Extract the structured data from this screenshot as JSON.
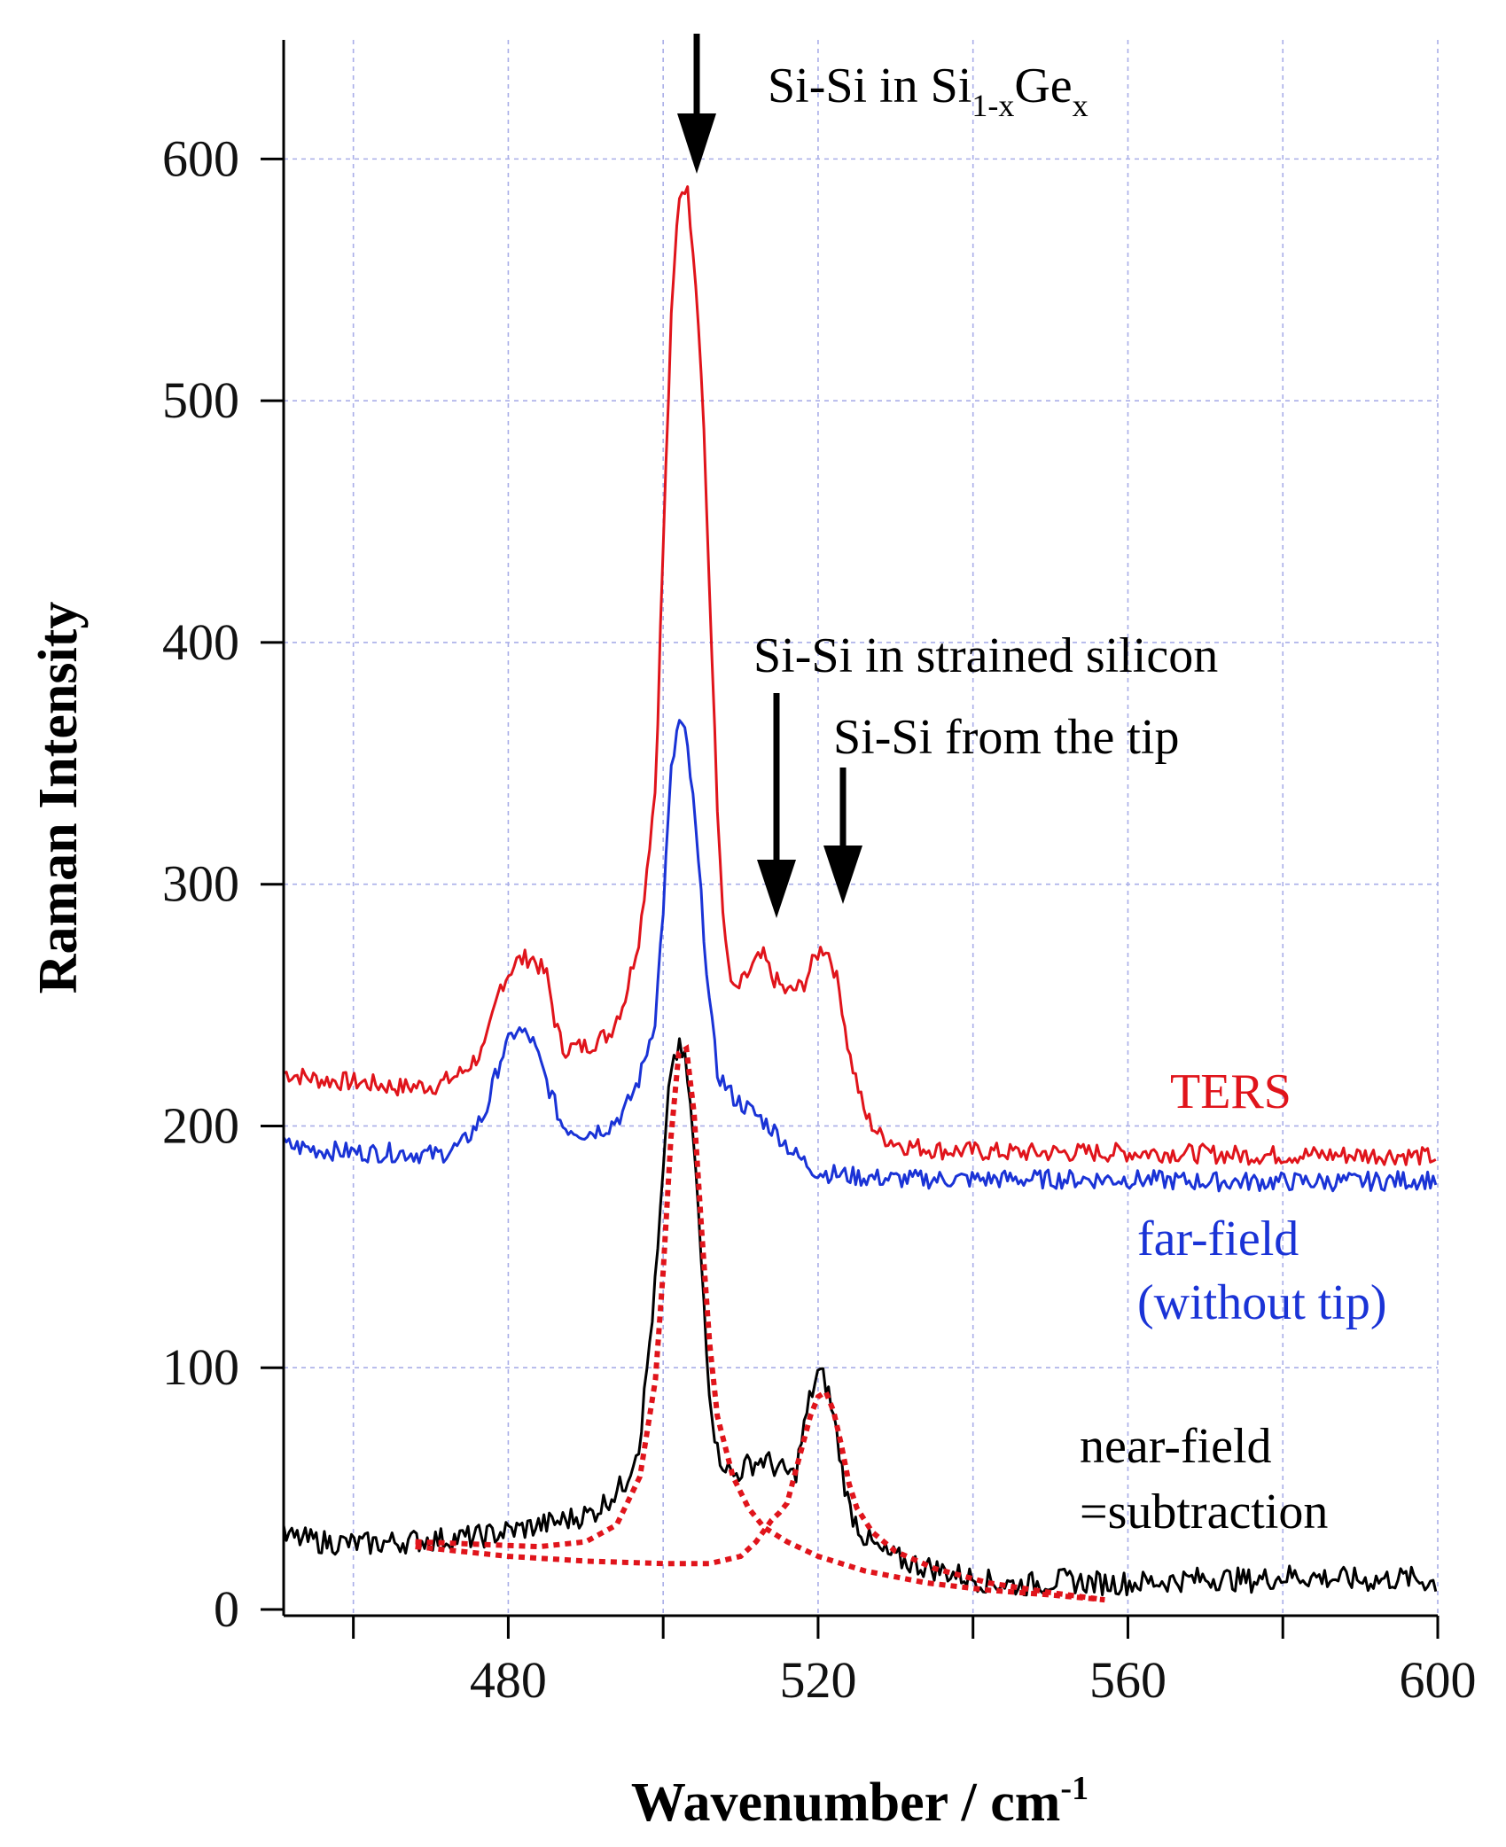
{
  "chart_data": {
    "type": "line",
    "title": "",
    "xlabel": "Wavenumber / cm",
    "xlabel_sup": "-1",
    "ylabel": "Raman Intensity",
    "xlim": [
      451,
      600
    ],
    "ylim": [
      0,
      650
    ],
    "x_ticks": [
      480,
      520,
      560,
      600
    ],
    "x_minor_ticks": [
      460,
      500,
      540,
      580
    ],
    "y_ticks": [
      0,
      100,
      200,
      300,
      400,
      500,
      600
    ],
    "grid": true,
    "colors": {
      "ters": "#e0141b",
      "farfield": "#1a33d6",
      "nearfield": "#000000",
      "fit": "#e0141b",
      "grid": "#a9aee8"
    },
    "series": [
      {
        "name": "TERS",
        "color": "#e0141b",
        "points": [
          [
            451,
            222
          ],
          [
            456,
            219
          ],
          [
            461,
            218
          ],
          [
            466,
            216
          ],
          [
            471,
            217
          ],
          [
            474,
            222
          ],
          [
            477,
            232
          ],
          [
            479,
            258
          ],
          [
            481,
            268
          ],
          [
            483,
            270
          ],
          [
            485,
            262
          ],
          [
            486,
            244
          ],
          [
            487,
            232
          ],
          [
            490,
            233
          ],
          [
            493,
            238
          ],
          [
            495,
            252
          ],
          [
            497,
            280
          ],
          [
            499,
            340
          ],
          [
            500,
            440
          ],
          [
            501,
            530
          ],
          [
            502,
            585
          ],
          [
            503,
            590
          ],
          [
            504,
            560
          ],
          [
            505,
            510
          ],
          [
            506,
            420
          ],
          [
            507,
            330
          ],
          [
            508,
            275
          ],
          [
            509,
            255
          ],
          [
            510,
            258
          ],
          [
            512,
            268
          ],
          [
            513,
            270
          ],
          [
            514,
            262
          ],
          [
            516,
            255
          ],
          [
            518,
            258
          ],
          [
            519,
            265
          ],
          [
            520,
            272
          ],
          [
            521,
            274
          ],
          [
            522,
            266
          ],
          [
            523,
            252
          ],
          [
            524,
            230
          ],
          [
            525,
            218
          ],
          [
            526,
            205
          ],
          [
            528,
            196
          ],
          [
            531,
            192
          ],
          [
            536,
            190
          ],
          [
            545,
            189
          ],
          [
            555,
            189
          ],
          [
            565,
            189
          ],
          [
            575,
            188
          ],
          [
            585,
            188
          ],
          [
            595,
            188
          ],
          [
            600,
            187
          ]
        ]
      },
      {
        "name": "far-field (without tip)",
        "color": "#1a33d6",
        "points": [
          [
            451,
            192
          ],
          [
            456,
            190
          ],
          [
            461,
            189
          ],
          [
            466,
            189
          ],
          [
            471,
            188
          ],
          [
            474,
            192
          ],
          [
            477,
            205
          ],
          [
            479,
            228
          ],
          [
            481,
            240
          ],
          [
            483,
            236
          ],
          [
            485,
            218
          ],
          [
            487,
            200
          ],
          [
            490,
            197
          ],
          [
            493,
            200
          ],
          [
            495,
            206
          ],
          [
            497,
            220
          ],
          [
            499,
            245
          ],
          [
            500,
            290
          ],
          [
            501,
            345
          ],
          [
            502,
            368
          ],
          [
            503,
            360
          ],
          [
            504,
            330
          ],
          [
            505,
            290
          ],
          [
            506,
            250
          ],
          [
            507,
            222
          ],
          [
            509,
            212
          ],
          [
            511,
            207
          ],
          [
            513,
            202
          ],
          [
            515,
            196
          ],
          [
            517,
            188
          ],
          [
            520,
            181
          ],
          [
            525,
            179
          ],
          [
            530,
            178
          ],
          [
            540,
            178
          ],
          [
            550,
            178
          ],
          [
            560,
            178
          ],
          [
            570,
            177
          ],
          [
            580,
            177
          ],
          [
            590,
            177
          ],
          [
            600,
            178
          ]
        ]
      },
      {
        "name": "near-field =subtraction",
        "color": "#000000",
        "points": [
          [
            451,
            30
          ],
          [
            456,
            28
          ],
          [
            461,
            27
          ],
          [
            466,
            28
          ],
          [
            471,
            29
          ],
          [
            476,
            30
          ],
          [
            481,
            33
          ],
          [
            486,
            36
          ],
          [
            491,
            40
          ],
          [
            495,
            52
          ],
          [
            497,
            70
          ],
          [
            499,
            135
          ],
          [
            500,
            180
          ],
          [
            501,
            225
          ],
          [
            502,
            232
          ],
          [
            503,
            225
          ],
          [
            504,
            190
          ],
          [
            505,
            140
          ],
          [
            506,
            90
          ],
          [
            507,
            65
          ],
          [
            509,
            55
          ],
          [
            511,
            60
          ],
          [
            513,
            62
          ],
          [
            515,
            58
          ],
          [
            517,
            55
          ],
          [
            518,
            72
          ],
          [
            519,
            88
          ],
          [
            520,
            98
          ],
          [
            521,
            94
          ],
          [
            522,
            80
          ],
          [
            523,
            60
          ],
          [
            524,
            42
          ],
          [
            526,
            30
          ],
          [
            528,
            24
          ],
          [
            531,
            20
          ],
          [
            536,
            16
          ],
          [
            541,
            12
          ],
          [
            546,
            10
          ],
          [
            551,
            12
          ],
          [
            556,
            11
          ],
          [
            561,
            11
          ],
          [
            566,
            12
          ],
          [
            571,
            13
          ],
          [
            576,
            12
          ],
          [
            581,
            14
          ],
          [
            586,
            13
          ],
          [
            591,
            12
          ],
          [
            596,
            13
          ],
          [
            600,
            11
          ]
        ]
      },
      {
        "name": "Lorentzian fit 1",
        "color": "#e0141b",
        "dashed": true,
        "points": [
          [
            468,
            28
          ],
          [
            476,
            27
          ],
          [
            484,
            26
          ],
          [
            490,
            28
          ],
          [
            494,
            35
          ],
          [
            497,
            55
          ],
          [
            499,
            95
          ],
          [
            500,
            140
          ],
          [
            501,
            195
          ],
          [
            502,
            230
          ],
          [
            503,
            232
          ],
          [
            504,
            205
          ],
          [
            505,
            155
          ],
          [
            506,
            110
          ],
          [
            507,
            80
          ],
          [
            509,
            55
          ],
          [
            511,
            42
          ],
          [
            513,
            34
          ],
          [
            516,
            28
          ],
          [
            520,
            22
          ],
          [
            526,
            16
          ],
          [
            534,
            11
          ],
          [
            542,
            8
          ],
          [
            550,
            6
          ],
          [
            557,
            4
          ]
        ]
      },
      {
        "name": "Lorentzian fit 2",
        "color": "#e0141b",
        "dashed": true,
        "points": [
          [
            468,
            26
          ],
          [
            480,
            22
          ],
          [
            490,
            20
          ],
          [
            500,
            19
          ],
          [
            506,
            19
          ],
          [
            510,
            22
          ],
          [
            512,
            28
          ],
          [
            514,
            37
          ],
          [
            515,
            40
          ],
          [
            516,
            44
          ],
          [
            517,
            56
          ],
          [
            518,
            68
          ],
          [
            519,
            80
          ],
          [
            520,
            88
          ],
          [
            521,
            90
          ],
          [
            522,
            82
          ],
          [
            523,
            68
          ],
          [
            524,
            52
          ],
          [
            525,
            42
          ],
          [
            527,
            32
          ],
          [
            530,
            24
          ],
          [
            535,
            17
          ],
          [
            542,
            11
          ],
          [
            550,
            7
          ],
          [
            557,
            4
          ]
        ]
      }
    ],
    "annotations": {
      "sige_main": "Si-Si in Si",
      "sige_sub1": "1-x",
      "sige_mid": "Ge",
      "sige_sub2": "x",
      "strained": "Si-Si in strained silicon",
      "tip": "Si-Si from the tip"
    },
    "legend": {
      "ters": "TERS",
      "farfield_line1": "far-field",
      "farfield_line2": "(without tip)",
      "nearfield_line1": "near-field",
      "nearfield_line2": "=subtraction"
    }
  }
}
